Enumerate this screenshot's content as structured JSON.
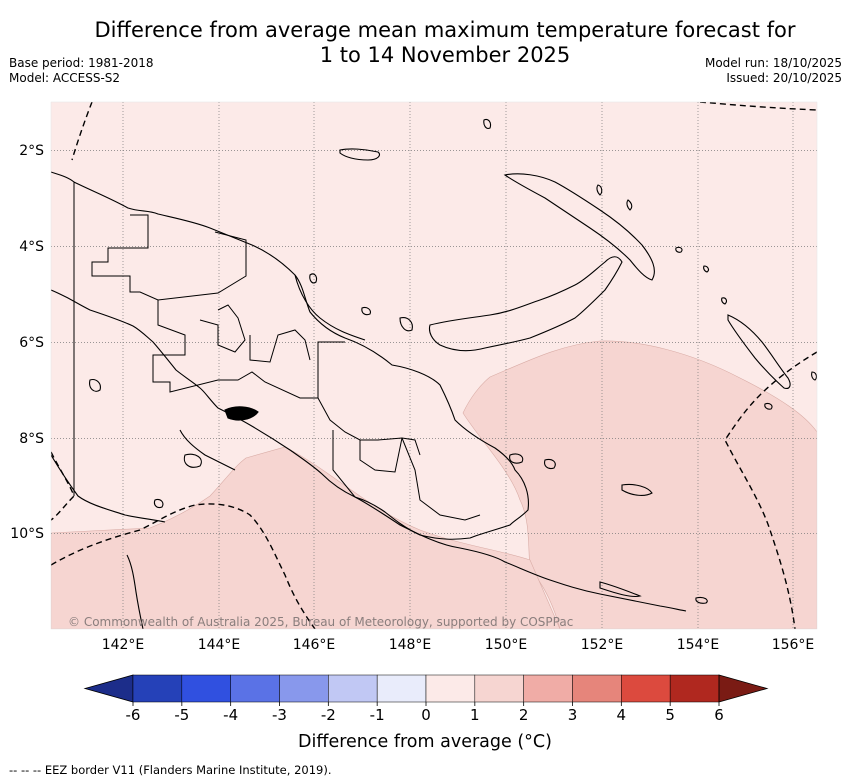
{
  "header": {
    "title_line1": "Difference from average mean maximum temperature forecast for",
    "title_line2": "1 to 14 November 2025",
    "base_period": "Base period: 1981-2018",
    "model": "Model: ACCESS-S2",
    "model_run": "Model run: 18/10/2025",
    "issued": "Issued: 20/10/2025"
  },
  "map": {
    "region": "Papua New Guinea",
    "lat_labels": [
      "2°S",
      "4°S",
      "6°S",
      "8°S",
      "10°S"
    ],
    "lon_labels": [
      "142°E",
      "144°E",
      "146°E",
      "148°E",
      "150°E",
      "152°E",
      "154°E",
      "156°E"
    ],
    "copyright": "© Commonwealth of Australia 2025, Bureau of Meteorology, supported by COSPPac",
    "fill_colors": {
      "zero_to_one": "#fceae8",
      "one_to_two": "#f6d5d1"
    }
  },
  "colorbar": {
    "ticks": [
      "-6",
      "-5",
      "-4",
      "-3",
      "-2",
      "-1",
      "0",
      "1",
      "2",
      "3",
      "4",
      "5",
      "6"
    ],
    "colors": [
      "#1c2d8a",
      "#2541b8",
      "#3050e0",
      "#5a72e6",
      "#8898ec",
      "#c1c8f4",
      "#e9ecfb",
      "#fceae8",
      "#f6d5d1",
      "#f0aca6",
      "#e6857b",
      "#dc4a3e",
      "#b0281f",
      "#7a1b14"
    ],
    "label": "Difference from average (°C)"
  },
  "footer": {
    "legend_text": "--  --  -- EEZ border V11 (Flanders Marine Institute, 2019)."
  }
}
